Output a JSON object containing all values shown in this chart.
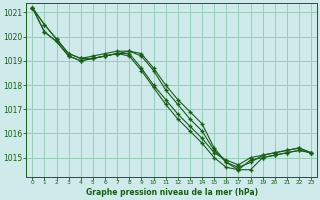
{
  "title": "Graphe pression niveau de la mer (hPa)",
  "bg_color": "#ceeaea",
  "grid_color": "#99ccbb",
  "line_color": "#1a5c1a",
  "xlim": [
    -0.5,
    23.5
  ],
  "ylim": [
    1014.2,
    1021.4
  ],
  "yticks": [
    1015,
    1016,
    1017,
    1018,
    1019,
    1020,
    1021
  ],
  "xticks": [
    0,
    1,
    2,
    3,
    4,
    5,
    6,
    7,
    8,
    9,
    10,
    11,
    12,
    13,
    14,
    15,
    16,
    17,
    18,
    19,
    20,
    21,
    22,
    23
  ],
  "series": [
    [
      1021.2,
      1020.5,
      1019.9,
      1019.3,
      1019.1,
      1019.1,
      1019.2,
      1019.3,
      1019.3,
      1018.7,
      1018.0,
      1017.4,
      1016.8,
      1016.3,
      1015.8,
      1015.2,
      1014.9,
      1014.7,
      1015.0,
      1015.1,
      1015.2,
      1015.3,
      1015.4,
      1015.2
    ],
    [
      1021.2,
      1020.5,
      1019.9,
      1019.3,
      1019.1,
      1019.2,
      1019.3,
      1019.4,
      1019.4,
      1019.3,
      1018.7,
      1018.0,
      1017.4,
      1016.9,
      1016.4,
      1015.4,
      1014.8,
      1014.6,
      1014.8,
      1015.1,
      1015.2,
      1015.3,
      1015.4,
      1015.2
    ],
    [
      1021.2,
      1020.2,
      1019.8,
      1019.2,
      1019.0,
      1019.1,
      1019.2,
      1019.3,
      1019.4,
      1019.2,
      1018.6,
      1017.8,
      1017.2,
      1016.6,
      1016.1,
      1015.3,
      1014.8,
      1014.5,
      1014.5,
      1015.0,
      1015.1,
      1015.2,
      1015.3,
      1015.2
    ],
    [
      1021.2,
      1020.2,
      1019.8,
      1019.2,
      1019.0,
      1019.1,
      1019.2,
      1019.3,
      1019.2,
      1018.6,
      1017.9,
      1017.2,
      1016.6,
      1016.1,
      1015.6,
      1015.0,
      1014.6,
      1014.5,
      1014.9,
      1015.0,
      1015.1,
      1015.2,
      1015.3,
      1015.2
    ]
  ]
}
